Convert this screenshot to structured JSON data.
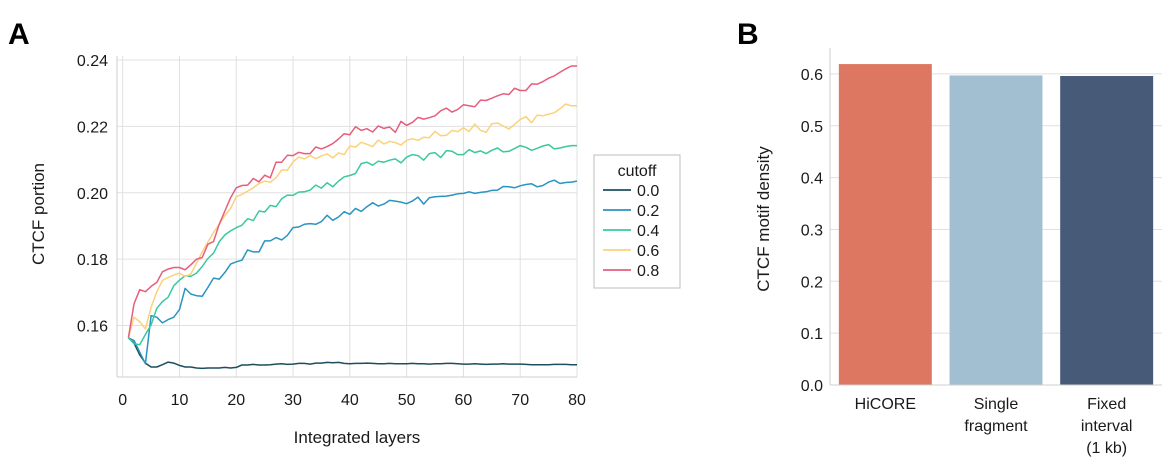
{
  "chart_data": [
    {
      "panel": "A",
      "type": "line",
      "xlabel": "Integrated layers",
      "ylabel": "CTCF portion",
      "xlim": [
        -1,
        80
      ],
      "ylim": [
        0.1445,
        0.2412
      ],
      "xticks": [
        "0",
        "10",
        "20",
        "30",
        "40",
        "50",
        "60",
        "70",
        "80"
      ],
      "yticks": [
        "0.16",
        "0.18",
        "0.20",
        "0.22",
        "0.24"
      ],
      "grid": true,
      "legend": {
        "title": "cutoff",
        "placement": "right outside"
      },
      "x": [
        1,
        2,
        3,
        4,
        5,
        6,
        7,
        8,
        9,
        10,
        11,
        12,
        13,
        14,
        15,
        16,
        17,
        18,
        19,
        20,
        21,
        22,
        23,
        24,
        25,
        26,
        27,
        28,
        29,
        30,
        31,
        32,
        33,
        34,
        35,
        36,
        37,
        38,
        39,
        40,
        41,
        42,
        43,
        44,
        45,
        46,
        47,
        48,
        49,
        50,
        51,
        52,
        53,
        54,
        55,
        56,
        57,
        58,
        59,
        60,
        61,
        62,
        63,
        64,
        65,
        66,
        67,
        68,
        69,
        70,
        71,
        72,
        73,
        74,
        75,
        76,
        77,
        78,
        79,
        80
      ],
      "series": [
        {
          "name": "0.0",
          "color": "#1d4e5e",
          "values": [
            0.1563,
            0.1547,
            0.1512,
            0.1487,
            0.1475,
            0.1475,
            0.1482,
            0.149,
            0.1487,
            0.148,
            0.1475,
            0.1475,
            0.1472,
            0.1471,
            0.1472,
            0.1472,
            0.1472,
            0.1474,
            0.1472,
            0.1474,
            0.1481,
            0.1481,
            0.1483,
            0.1481,
            0.1481,
            0.1482,
            0.1484,
            0.1485,
            0.1483,
            0.1484,
            0.1486,
            0.1486,
            0.1484,
            0.1487,
            0.1487,
            0.1489,
            0.1488,
            0.1489,
            0.1486,
            0.1485,
            0.1486,
            0.1486,
            0.1487,
            0.1486,
            0.1485,
            0.1485,
            0.1486,
            0.1485,
            0.1485,
            0.1485,
            0.1486,
            0.1485,
            0.1485,
            0.1484,
            0.1485,
            0.1485,
            0.1486,
            0.1486,
            0.1485,
            0.1484,
            0.1484,
            0.1485,
            0.1484,
            0.1483,
            0.1484,
            0.1484,
            0.1485,
            0.1484,
            0.1484,
            0.1484,
            0.1483,
            0.1482,
            0.1482,
            0.1482,
            0.1482,
            0.1483,
            0.1483,
            0.1483,
            0.1482,
            0.1482
          ]
        },
        {
          "name": "0.2",
          "color": "#2a94c1",
          "values": [
            0.1563,
            0.1555,
            0.152,
            0.1485,
            0.163,
            0.1625,
            0.1608,
            0.1618,
            0.1625,
            0.1648,
            0.1712,
            0.1695,
            0.169,
            0.1688,
            0.1715,
            0.1743,
            0.174,
            0.176,
            0.1785,
            0.1792,
            0.1797,
            0.1828,
            0.1822,
            0.1822,
            0.1855,
            0.1855,
            0.1865,
            0.1858,
            0.1872,
            0.1895,
            0.1897,
            0.1905,
            0.1907,
            0.1905,
            0.1913,
            0.1932,
            0.1917,
            0.1927,
            0.1943,
            0.1935,
            0.1953,
            0.1944,
            0.1958,
            0.197,
            0.196,
            0.1966,
            0.1977,
            0.1975,
            0.1972,
            0.1967,
            0.1975,
            0.1987,
            0.1966,
            0.1985,
            0.1988,
            0.1989,
            0.199,
            0.1993,
            0.1997,
            0.1998,
            0.2003,
            0.1998,
            0.2001,
            0.2003,
            0.2007,
            0.2008,
            0.2019,
            0.2018,
            0.2015,
            0.2021,
            0.2025,
            0.2027,
            0.2018,
            0.2022,
            0.2032,
            0.2038,
            0.2028,
            0.2031,
            0.2032,
            0.2035
          ]
        },
        {
          "name": "0.4",
          "color": "#3ac99f",
          "values": [
            0.1563,
            0.1545,
            0.1542,
            0.1573,
            0.1602,
            0.1652,
            0.1672,
            0.1685,
            0.172,
            0.1737,
            0.175,
            0.1748,
            0.1758,
            0.1778,
            0.1802,
            0.1818,
            0.1852,
            0.1873,
            0.1885,
            0.1895,
            0.1902,
            0.1922,
            0.1916,
            0.1945,
            0.1942,
            0.1962,
            0.1958,
            0.1982,
            0.1993,
            0.1992,
            0.2002,
            0.2003,
            0.2008,
            0.2023,
            0.2014,
            0.203,
            0.2018,
            0.2035,
            0.2048,
            0.2052,
            0.2058,
            0.2088,
            0.2092,
            0.2083,
            0.2095,
            0.2092,
            0.2098,
            0.2102,
            0.209,
            0.2107,
            0.2115,
            0.2112,
            0.2098,
            0.2118,
            0.2121,
            0.2106,
            0.2127,
            0.2125,
            0.2115,
            0.2115,
            0.213,
            0.2121,
            0.2126,
            0.2118,
            0.2128,
            0.2135,
            0.2123,
            0.2125,
            0.2133,
            0.2142,
            0.2137,
            0.2128,
            0.2134,
            0.2141,
            0.2145,
            0.2132,
            0.2135,
            0.2139,
            0.2142,
            0.2142
          ]
        },
        {
          "name": "0.6",
          "color": "#fbd279",
          "values": [
            0.1563,
            0.1625,
            0.1612,
            0.159,
            0.1655,
            0.1702,
            0.1736,
            0.1745,
            0.1752,
            0.1758,
            0.1748,
            0.1755,
            0.1788,
            0.1822,
            0.1852,
            0.188,
            0.1905,
            0.1932,
            0.1953,
            0.1988,
            0.1995,
            0.2005,
            0.2015,
            0.2028,
            0.2035,
            0.2032,
            0.2045,
            0.2069,
            0.2068,
            0.2093,
            0.2108,
            0.2102,
            0.2112,
            0.2103,
            0.2111,
            0.2117,
            0.2105,
            0.212,
            0.2115,
            0.2141,
            0.2138,
            0.2152,
            0.2146,
            0.2139,
            0.2159,
            0.2147,
            0.2155,
            0.2151,
            0.2144,
            0.2158,
            0.2163,
            0.2158,
            0.2167,
            0.2166,
            0.2185,
            0.2172,
            0.2173,
            0.2188,
            0.2184,
            0.2196,
            0.2185,
            0.2207,
            0.2188,
            0.2182,
            0.2208,
            0.221,
            0.2201,
            0.2192,
            0.2206,
            0.2221,
            0.2229,
            0.2211,
            0.2234,
            0.2232,
            0.2237,
            0.2241,
            0.2253,
            0.2267,
            0.2262,
            0.2262
          ]
        },
        {
          "name": "0.8",
          "color": "#e65e7c",
          "values": [
            0.1563,
            0.1665,
            0.1708,
            0.1702,
            0.1718,
            0.173,
            0.1762,
            0.177,
            0.1775,
            0.1775,
            0.1768,
            0.1783,
            0.18,
            0.1805,
            0.1845,
            0.1853,
            0.1905,
            0.1945,
            0.1985,
            0.2015,
            0.2022,
            0.2023,
            0.2043,
            0.2033,
            0.2053,
            0.2045,
            0.2092,
            0.2092,
            0.2113,
            0.2112,
            0.2122,
            0.2118,
            0.2118,
            0.2138,
            0.2132,
            0.2139,
            0.2148,
            0.2162,
            0.2178,
            0.2175,
            0.2199,
            0.2188,
            0.2193,
            0.2183,
            0.2201,
            0.2194,
            0.2198,
            0.2182,
            0.2215,
            0.2203,
            0.2212,
            0.2227,
            0.2222,
            0.2226,
            0.2232,
            0.2247,
            0.2255,
            0.2243,
            0.2251,
            0.2265,
            0.2262,
            0.2259,
            0.2279,
            0.2278,
            0.2285,
            0.2292,
            0.2298,
            0.2296,
            0.2315,
            0.2308,
            0.2308,
            0.2328,
            0.2327,
            0.2335,
            0.2345,
            0.2352,
            0.2363,
            0.2373,
            0.2382,
            0.2382
          ]
        }
      ]
    },
    {
      "panel": "B",
      "type": "bar",
      "ylabel": "CTCF motif density",
      "xlabel": "",
      "ylim": [
        0,
        0.65
      ],
      "yticks": [
        "0.0",
        "0.1",
        "0.2",
        "0.3",
        "0.4",
        "0.5",
        "0.6"
      ],
      "grid": true,
      "categories": [
        [
          "HiCORE"
        ],
        [
          "Single",
          "fragment"
        ],
        [
          "Fixed",
          "interval",
          "(1 kb)"
        ]
      ],
      "values": [
        0.619,
        0.597,
        0.596
      ],
      "colors": [
        "#dd7761",
        "#a2bfd1",
        "#475a78"
      ]
    }
  ]
}
